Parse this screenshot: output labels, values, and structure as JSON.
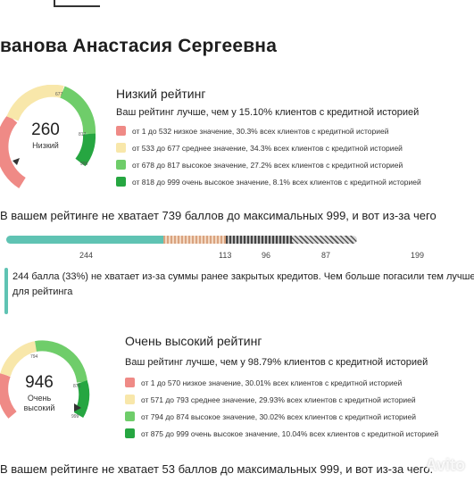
{
  "report": {
    "name": "ванова Анастасия Сергеевна"
  },
  "score1": {
    "value": "260",
    "label": "Низкий",
    "title": "Низкий рейтинг",
    "better_text": "Ваш рейтинг лучше, чем у 15.10% клиентов с кредитной историей",
    "gauge_ticks": [
      "677",
      "817",
      "999"
    ],
    "legend": [
      {
        "text": "от 1 до 532 низкое значение, 30.3% всех клиентов с кредитной историей",
        "color": "#ef8a86"
      },
      {
        "text": "от 533 до 677 среднее значение, 34.3% всех клиентов с кредитной историей",
        "color": "#f8e7aa"
      },
      {
        "text": "от 678 до 817 высокое значение, 27.2% всех клиентов с кредитной историей",
        "color": "#6fcd6a"
      },
      {
        "text": "от 818 до 999 очень высокое значение, 8.1% всех клиентов с кредитной историей",
        "color": "#26a641"
      }
    ],
    "missing_text": "В вашем рейтинге не хватает 739 баллов до максимальных 999, и вот из-за чего"
  },
  "bar": {
    "segments": [
      {
        "value": 244,
        "label": "244",
        "color": "#5fc3b3"
      },
      {
        "value": 113,
        "label": "113",
        "color": "#d9a37f"
      },
      {
        "value": 96,
        "label": "96",
        "color": "#555555"
      },
      {
        "value": 87,
        "label": "87",
        "color": "#888888"
      },
      {
        "value": 199,
        "label": "199",
        "color": "#ffffff"
      }
    ],
    "note": "244 балла (33%) не хватает из-за суммы ранее закрытых кредитов. Чем больше погасили тем лучше для рейтинга"
  },
  "score2": {
    "value": "946",
    "label": "Очень высокий",
    "title": "Очень высокий рейтинг",
    "better_text": "Ваш рейтинг лучше, чем у 98.79% клиентов с кредитной историей",
    "gauge_ticks": [
      "794",
      "875",
      "999"
    ],
    "legend": [
      {
        "text": "от 1 до 570 низкое значение, 30.01% всех клиентов с кредитной историей",
        "color": "#ef8a86"
      },
      {
        "text": "от 571 до 793 среднее значение, 29.93% всех клиентов с кредитной историей",
        "color": "#f8e7aa"
      },
      {
        "text": "от 794 до 874 высокое значение, 30.02% всех клиентов с кредитной историей",
        "color": "#6fcd6a"
      },
      {
        "text": "от 875 до 999 очень высокое значение, 10.04% всех клиентов с кредитной историей",
        "color": "#26a641"
      }
    ],
    "missing_text": "В вашем рейтинге не хватает 53 баллов до максимальных 999, и вот из-за чего."
  },
  "watermark": "Avito"
}
